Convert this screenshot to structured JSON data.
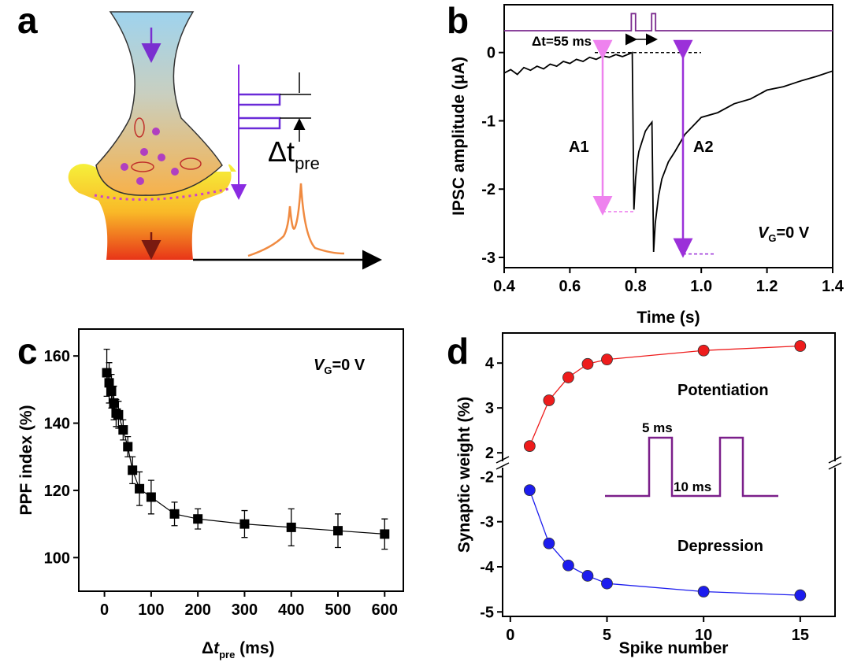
{
  "panel_labels": [
    "a",
    "b",
    "c",
    "d"
  ],
  "diagram": {
    "label": "Δt",
    "label_sub": "pre"
  },
  "chart_data": [
    {
      "type": "line",
      "xlabel": "Time (s)",
      "ylabel": "IPSC amplitude (μA)",
      "xlim": [
        0.4,
        1.4
      ],
      "xticks": [
        0.4,
        0.6,
        0.8,
        {
          "value": 1,
          "label": "1.0"
        },
        1.2,
        1.4
      ],
      "ylim": [
        -3.15,
        0.7
      ],
      "yticks": [
        0,
        -1,
        -2,
        -3
      ],
      "series": [
        {
          "color": "#000000",
          "x": [
            0.4,
            0.42,
            0.44,
            0.46,
            0.48,
            0.5,
            0.52,
            0.54,
            0.56,
            0.58,
            0.6,
            0.62,
            0.64,
            0.66,
            0.68,
            0.7,
            0.72,
            0.74,
            0.76,
            0.78,
            0.79,
            0.795,
            0.8,
            0.805,
            0.81,
            0.82,
            0.83,
            0.84,
            0.85,
            0.855,
            0.86,
            0.87,
            0.88,
            0.9,
            0.92,
            0.95,
            0.98,
            1.0,
            1.05,
            1.1,
            1.15,
            1.2,
            1.25,
            1.3,
            1.35,
            1.4
          ],
          "values": [
            -0.3,
            -0.25,
            -0.32,
            -0.22,
            -0.26,
            -0.2,
            -0.24,
            -0.17,
            -0.2,
            -0.13,
            -0.16,
            -0.1,
            -0.13,
            -0.07,
            -0.1,
            -0.05,
            -0.07,
            -0.03,
            -0.06,
            -0.02,
            0.0,
            -2.3,
            -1.85,
            -1.6,
            -1.45,
            -1.3,
            -1.15,
            -1.08,
            -1.02,
            -2.92,
            -2.5,
            -2.1,
            -1.85,
            -1.6,
            -1.45,
            -1.2,
            -1.05,
            -0.95,
            -0.88,
            -0.75,
            -0.68,
            -0.55,
            -0.5,
            -0.42,
            -0.35,
            -0.27
          ]
        },
        {
          "color": "#7b2a8e",
          "x": [
            0.4,
            0.787,
            0.787,
            0.8,
            0.8,
            0.849,
            0.849,
            0.861,
            0.861,
            1.4
          ],
          "values": [
            0.32,
            0.32,
            0.57,
            0.57,
            0.32,
            0.32,
            0.57,
            0.57,
            0.32,
            0.32
          ]
        }
      ],
      "arrows": [
        {
          "label": "A1",
          "color": "#ee82ee",
          "value": -2.33
        },
        {
          "label": "A2",
          "color": "#9b30d9",
          "value": -2.95
        }
      ],
      "annotations": {
        "interval": "Δt=55 ms",
        "condition": {
          "main": "V",
          "sub": "G",
          "rest": "=0 V"
        }
      }
    },
    {
      "type": "scatter",
      "xlabel": {
        "main": "Δ",
        "italic": "t",
        "sub": "pre",
        "rest": " (ms)"
      },
      "ylabel": "PPF index (%)",
      "xlim": [
        -55,
        640
      ],
      "xticks": [
        0,
        100,
        200,
        300,
        400,
        500,
        600
      ],
      "ylim": [
        90,
        168
      ],
      "yticks": [
        100,
        120,
        140,
        160
      ],
      "series": [
        {
          "color": "#000000",
          "x": [
            5,
            10,
            15,
            20,
            25,
            30,
            40,
            50,
            60,
            75,
            100,
            150,
            200,
            300,
            400,
            500,
            600
          ],
          "values": [
            155,
            152,
            149.5,
            146,
            143,
            142.5,
            138,
            133,
            126,
            120.5,
            118,
            113,
            111.5,
            110,
            109,
            108,
            107
          ],
          "errors": [
            7,
            6,
            5,
            5,
            4,
            4,
            3,
            3,
            4,
            5,
            5,
            3.5,
            3,
            4,
            5.5,
            5,
            4.5
          ]
        }
      ],
      "annotations": {
        "condition": {
          "main": "V",
          "sub": "G",
          "rest": "=0 V"
        }
      }
    },
    {
      "type": "line",
      "xlabel": "Spike number",
      "ylabel": "Synaptic weight (%)",
      "xlim": [
        -0.4,
        16.8
      ],
      "xticks": [
        0,
        5,
        10,
        15
      ],
      "ylim": [
        1.81,
        4.67
      ],
      "yticks": [
        2,
        3,
        4
      ],
      "y2lim": [
        -5.1,
        -1.8
      ],
      "y2ticks": [
        -5,
        -4,
        -3,
        -2
      ],
      "series": [
        {
          "name": "Potentiation",
          "color": "#ee1c1c",
          "x": [
            1,
            2,
            3,
            4,
            5,
            10,
            15
          ],
          "values": [
            2.15,
            3.17,
            3.68,
            3.98,
            4.08,
            4.28,
            4.38
          ]
        },
        {
          "name": "Depression",
          "color": "#1c1cee",
          "axis": "y2",
          "x": [
            1,
            2,
            3,
            4,
            5,
            10,
            15
          ],
          "values": [
            -2.3,
            -3.48,
            -3.97,
            -4.2,
            -4.37,
            -4.55,
            -4.63
          ]
        }
      ],
      "annotations": {
        "width": "5 ms",
        "gap": "10 ms"
      }
    }
  ]
}
